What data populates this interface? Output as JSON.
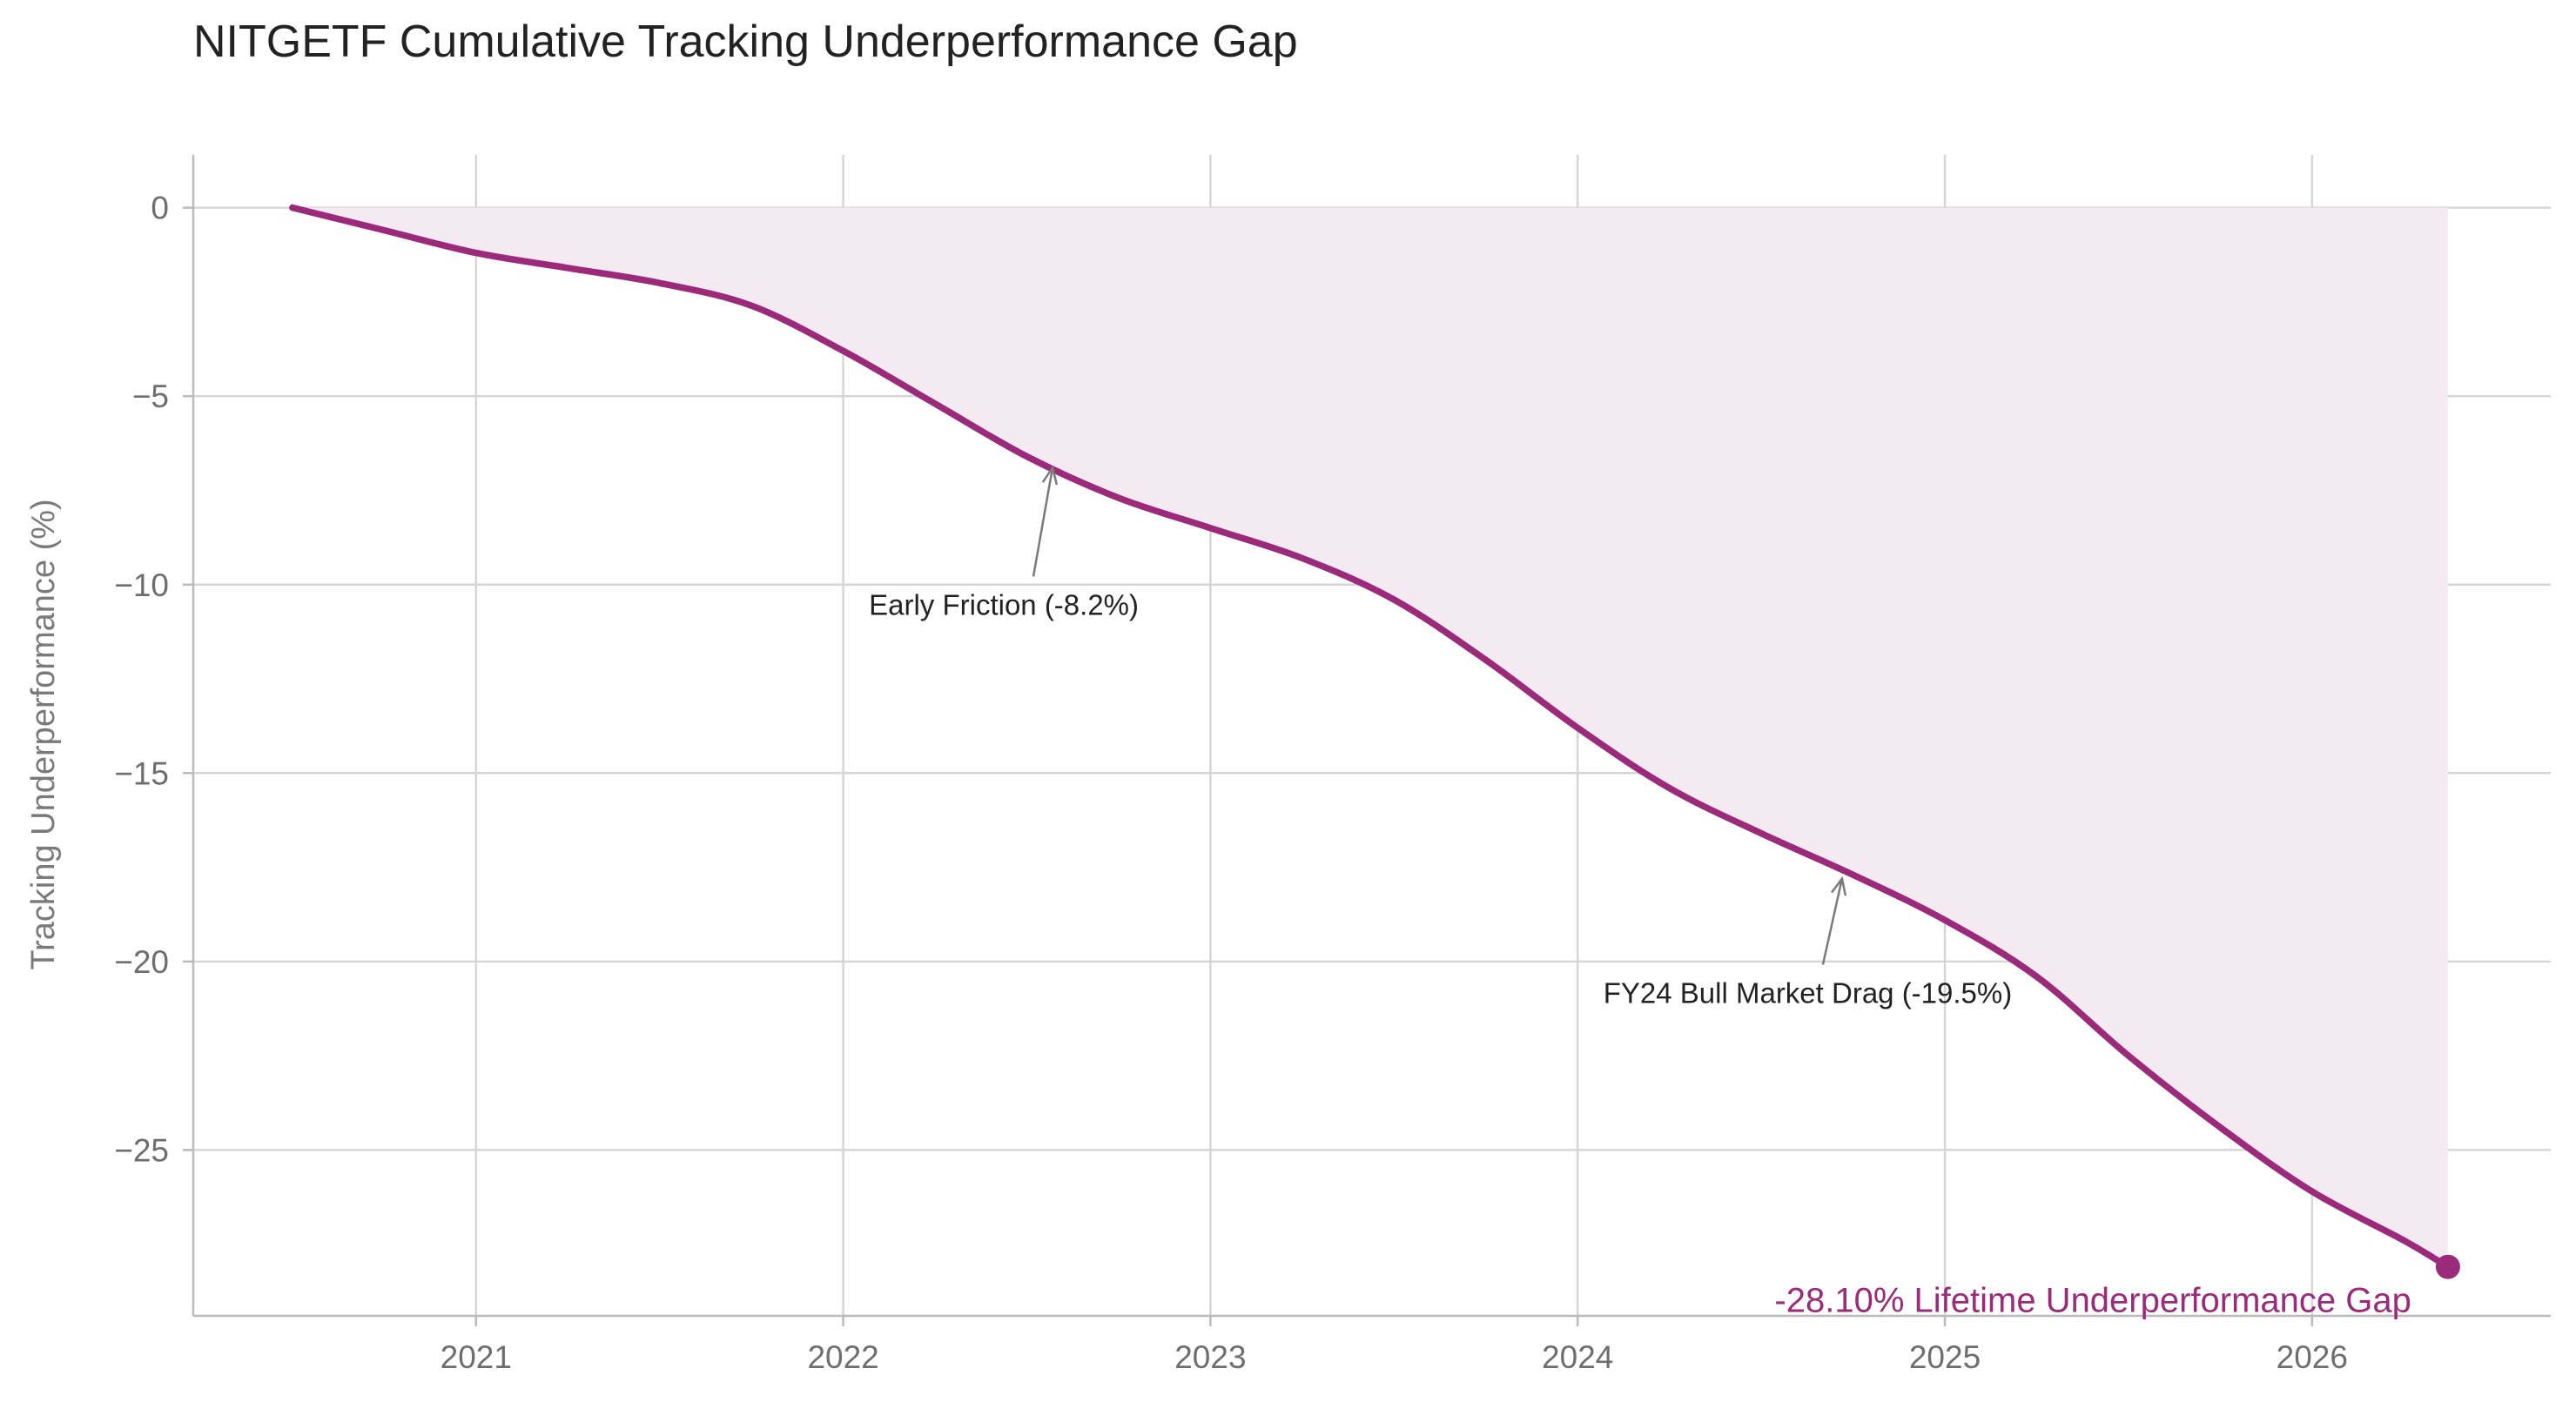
{
  "chart_data": {
    "type": "area",
    "title": "NITGETF Cumulative Tracking Underperformance Gap",
    "xlabel": "",
    "ylabel": "Tracking Underperformance (%)",
    "xlim": [
      2020.23,
      2026.65
    ],
    "ylim": [
      -29.4,
      1.4
    ],
    "x_ticks": [
      2021,
      2022,
      2023,
      2024,
      2025,
      2026
    ],
    "y_ticks": [
      0,
      -5,
      -10,
      -15,
      -20,
      -25
    ],
    "y_tick_labels": [
      "0",
      "−5",
      "−10",
      "−15",
      "−20",
      "−25"
    ],
    "grid": true,
    "series": [
      {
        "color": "#9b2a7a",
        "fill_color": "#f4ebf2",
        "x": [
          2020.5,
          2020.75,
          2021.0,
          2021.25,
          2021.5,
          2021.75,
          2022.0,
          2022.25,
          2022.5,
          2022.75,
          2023.0,
          2023.25,
          2023.5,
          2023.75,
          2024.0,
          2024.25,
          2024.5,
          2024.75,
          2025.0,
          2025.25,
          2025.5,
          2025.75,
          2026.0,
          2026.25,
          2026.37
        ],
        "values": [
          0.0,
          -0.6,
          -1.2,
          -1.6,
          -2.0,
          -2.6,
          -3.8,
          -5.2,
          -6.6,
          -7.7,
          -8.5,
          -9.3,
          -10.4,
          -12.0,
          -13.8,
          -15.4,
          -16.6,
          -17.7,
          -18.9,
          -20.4,
          -22.5,
          -24.4,
          -26.1,
          -27.4,
          -28.1
        ]
      }
    ],
    "annotations": [
      {
        "text": "Early Friction (-8.2%)",
        "x": 2022.57,
        "y": -6.9,
        "text_x": 2022.07,
        "text_y": -10.8
      },
      {
        "text": "FY24 Bull Market Drag (-19.5%)",
        "x": 2024.72,
        "y": -17.8,
        "text_x": 2024.07,
        "text_y": -21.1
      }
    ],
    "final_point": {
      "x": 2026.37,
      "y": -28.1,
      "label": "-28.10% Lifetime Underperformance Gap",
      "color": "#9b2a7a"
    }
  }
}
